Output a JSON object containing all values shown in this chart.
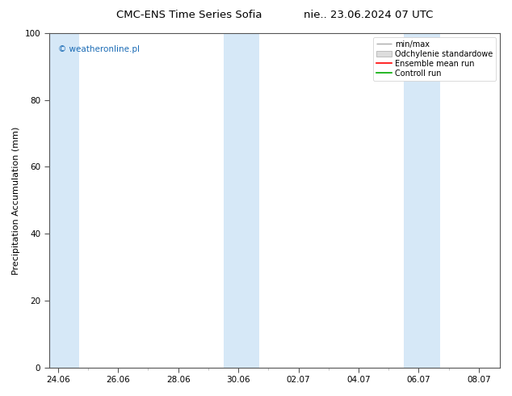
{
  "title_left": "CMC-ENS Time Series Sofia",
  "title_right": "nie.. 23.06.2024 07 UTC",
  "ylabel": "Precipitation Accumulation (mm)",
  "ylim": [
    0,
    100
  ],
  "yticks": [
    0,
    20,
    40,
    60,
    80,
    100
  ],
  "xtick_labels": [
    "24.06",
    "26.06",
    "28.06",
    "30.06",
    "02.07",
    "04.07",
    "06.07",
    "08.07"
  ],
  "watermark": "© weatheronline.pl",
  "watermark_color": "#1a6bb5",
  "legend_labels": [
    "min/max",
    "Odchylenie standardowe",
    "Ensemble mean run",
    "Controll run"
  ],
  "shaded_color": "#d6e8f7",
  "background_color": "#ffffff",
  "title_fontsize": 9.5,
  "axis_fontsize": 8,
  "tick_fontsize": 7.5,
  "legend_fontsize": 7
}
